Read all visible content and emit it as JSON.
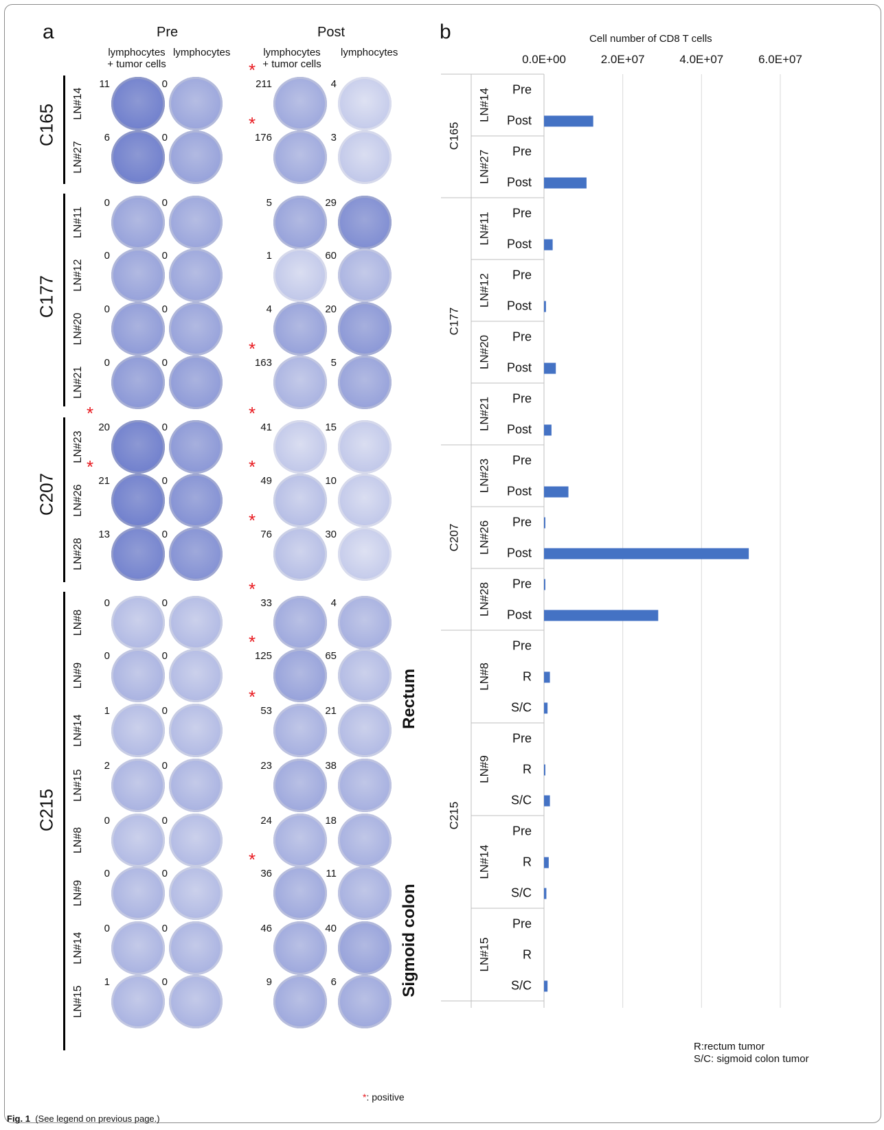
{
  "panel_a": {
    "letter": "a",
    "headers": {
      "pre": "Pre",
      "post": "Post",
      "col_lymph_tumor": [
        "lymphocytes",
        "+ tumor cells"
      ],
      "col_lymph": "lymphocytes"
    },
    "patients": [
      "C165",
      "C177",
      "C207",
      "C215"
    ],
    "region_labels": {
      "rectum": "Rectum",
      "sigmoid": "Sigmoid colon"
    },
    "rows": [
      {
        "ln": "LN#14",
        "counts": [
          "11",
          "0",
          "211",
          "4"
        ],
        "positive": [
          false,
          false,
          true,
          false
        ],
        "intensity": [
          0.9,
          0.5,
          0.45,
          0.1
        ]
      },
      {
        "ln": "LN#27",
        "counts": [
          "6",
          "0",
          "176",
          "3"
        ],
        "positive": [
          false,
          false,
          true,
          false
        ],
        "intensity": [
          0.9,
          0.55,
          0.45,
          0.15
        ]
      },
      {
        "ln": "LN#11",
        "counts": [
          "0",
          "0",
          "5",
          "29"
        ],
        "positive": [
          false,
          false,
          false,
          false
        ],
        "intensity": [
          0.55,
          0.5,
          0.55,
          0.75
        ]
      },
      {
        "ln": "LN#12",
        "counts": [
          "0",
          "0",
          "1",
          "60"
        ],
        "positive": [
          false,
          false,
          false,
          false
        ],
        "intensity": [
          0.55,
          0.5,
          0.15,
          0.35
        ]
      },
      {
        "ln": "LN#20",
        "counts": [
          "0",
          "0",
          "4",
          "20"
        ],
        "positive": [
          false,
          false,
          false,
          false
        ],
        "intensity": [
          0.6,
          0.55,
          0.55,
          0.65
        ]
      },
      {
        "ln": "LN#21",
        "counts": [
          "0",
          "0",
          "163",
          "5"
        ],
        "positive": [
          false,
          false,
          true,
          false
        ],
        "intensity": [
          0.65,
          0.6,
          0.35,
          0.55
        ]
      },
      {
        "ln": "LN#23",
        "counts": [
          "20",
          "0",
          "41",
          "15"
        ],
        "positive": [
          true,
          false,
          true,
          false
        ],
        "intensity": [
          0.9,
          0.65,
          0.15,
          0.15
        ]
      },
      {
        "ln": "LN#26",
        "counts": [
          "21",
          "0",
          "49",
          "10"
        ],
        "positive": [
          true,
          false,
          true,
          false
        ],
        "intensity": [
          0.9,
          0.7,
          0.25,
          0.15
        ]
      },
      {
        "ln": "LN#28",
        "counts": [
          "13",
          "0",
          "76",
          "30"
        ],
        "positive": [
          false,
          false,
          true,
          false
        ],
        "intensity": [
          0.85,
          0.7,
          0.25,
          0.1
        ]
      },
      {
        "ln": "LN#8",
        "counts": [
          "0",
          "0",
          "33",
          "4"
        ],
        "positive": [
          false,
          false,
          true,
          false
        ],
        "intensity": [
          0.3,
          0.3,
          0.45,
          0.4
        ]
      },
      {
        "ln": "LN#9",
        "counts": [
          "0",
          "0",
          "125",
          "65"
        ],
        "positive": [
          false,
          false,
          true,
          false
        ],
        "intensity": [
          0.35,
          0.3,
          0.55,
          0.3
        ]
      },
      {
        "ln": "LN#14",
        "counts": [
          "1",
          "0",
          "53",
          "21"
        ],
        "positive": [
          false,
          false,
          true,
          false
        ],
        "intensity": [
          0.3,
          0.3,
          0.4,
          0.3
        ]
      },
      {
        "ln": "LN#15",
        "counts": [
          "2",
          "0",
          "23",
          "38"
        ],
        "positive": [
          false,
          false,
          false,
          false
        ],
        "intensity": [
          0.35,
          0.35,
          0.45,
          0.4
        ]
      },
      {
        "ln": "LN#8",
        "counts": [
          "0",
          "0",
          "24",
          "18"
        ],
        "positive": [
          false,
          false,
          false,
          false
        ],
        "intensity": [
          0.3,
          0.3,
          0.4,
          0.4
        ]
      },
      {
        "ln": "LN#9",
        "counts": [
          "0",
          "0",
          "36",
          "11"
        ],
        "positive": [
          false,
          false,
          true,
          false
        ],
        "intensity": [
          0.35,
          0.3,
          0.45,
          0.4
        ]
      },
      {
        "ln": "LN#14",
        "counts": [
          "0",
          "0",
          "46",
          "40"
        ],
        "positive": [
          false,
          false,
          false,
          false
        ],
        "intensity": [
          0.35,
          0.35,
          0.45,
          0.55
        ]
      },
      {
        "ln": "LN#15",
        "counts": [
          "1",
          "0",
          "9",
          "6"
        ],
        "positive": [
          false,
          false,
          false,
          false
        ],
        "intensity": [
          0.35,
          0.35,
          0.45,
          0.45
        ]
      }
    ],
    "positive_legend": {
      "star": "*",
      "text": ": positive"
    }
  },
  "chart_data": {
    "type": "bar",
    "panel_letter": "b",
    "title": "Cell number of CD8 T cells",
    "orientation": "horizontal",
    "xlim": [
      0,
      60000000
    ],
    "xticks": [
      "0.0E+00",
      "2.0E+07",
      "4.0E+07",
      "6.0E+07"
    ],
    "grid": true,
    "bar_color": "#4472c4",
    "patients": [
      "C165",
      "C177",
      "C207",
      "C215"
    ],
    "groups": [
      {
        "patient": "C165",
        "ln": "LN#14",
        "bars": [
          {
            "label": "Pre",
            "value": 0
          },
          {
            "label": "Post",
            "value": 12500000
          }
        ]
      },
      {
        "patient": "C165",
        "ln": "LN#27",
        "bars": [
          {
            "label": "Pre",
            "value": 0
          },
          {
            "label": "Post",
            "value": 10800000
          }
        ]
      },
      {
        "patient": "C177",
        "ln": "LN#11",
        "bars": [
          {
            "label": "Pre",
            "value": 0
          },
          {
            "label": "Post",
            "value": 2200000
          }
        ]
      },
      {
        "patient": "C177",
        "ln": "LN#12",
        "bars": [
          {
            "label": "Pre",
            "value": 0
          },
          {
            "label": "Post",
            "value": 500000
          }
        ]
      },
      {
        "patient": "C177",
        "ln": "LN#20",
        "bars": [
          {
            "label": "Pre",
            "value": 0
          },
          {
            "label": "Post",
            "value": 3000000
          }
        ]
      },
      {
        "patient": "C177",
        "ln": "LN#21",
        "bars": [
          {
            "label": "Pre",
            "value": 0
          },
          {
            "label": "Post",
            "value": 1900000
          }
        ]
      },
      {
        "patient": "C207",
        "ln": "LN#23",
        "bars": [
          {
            "label": "Pre",
            "value": 0
          },
          {
            "label": "Post",
            "value": 6200000
          }
        ]
      },
      {
        "patient": "C207",
        "ln": "LN#26",
        "bars": [
          {
            "label": "Pre",
            "value": 300000
          },
          {
            "label": "Post",
            "value": 52000000
          }
        ]
      },
      {
        "patient": "C207",
        "ln": "LN#28",
        "bars": [
          {
            "label": "Pre",
            "value": 300000
          },
          {
            "label": "Post",
            "value": 29000000
          }
        ]
      },
      {
        "patient": "C215",
        "ln": "LN#8",
        "bars": [
          {
            "label": "Pre",
            "value": 0
          },
          {
            "label": "R",
            "value": 1500000
          },
          {
            "label": "S/C",
            "value": 900000
          }
        ]
      },
      {
        "patient": "C215",
        "ln": "LN#9",
        "bars": [
          {
            "label": "Pre",
            "value": 0
          },
          {
            "label": "R",
            "value": 300000
          },
          {
            "label": "S/C",
            "value": 1500000
          }
        ]
      },
      {
        "patient": "C215",
        "ln": "LN#14",
        "bars": [
          {
            "label": "Pre",
            "value": 0
          },
          {
            "label": "R",
            "value": 1200000
          },
          {
            "label": "S/C",
            "value": 600000
          }
        ]
      },
      {
        "patient": "C215",
        "ln": "LN#15",
        "bars": [
          {
            "label": "Pre",
            "value": 0
          },
          {
            "label": "R",
            "value": 0
          },
          {
            "label": "S/C",
            "value": 900000
          }
        ]
      }
    ],
    "legend_notes": [
      "R:rectum tumor",
      "S/C: sigmoid colon tumor"
    ]
  },
  "caption": {
    "bold": "Fig. 1",
    "text": "(See legend on previous page.)"
  }
}
